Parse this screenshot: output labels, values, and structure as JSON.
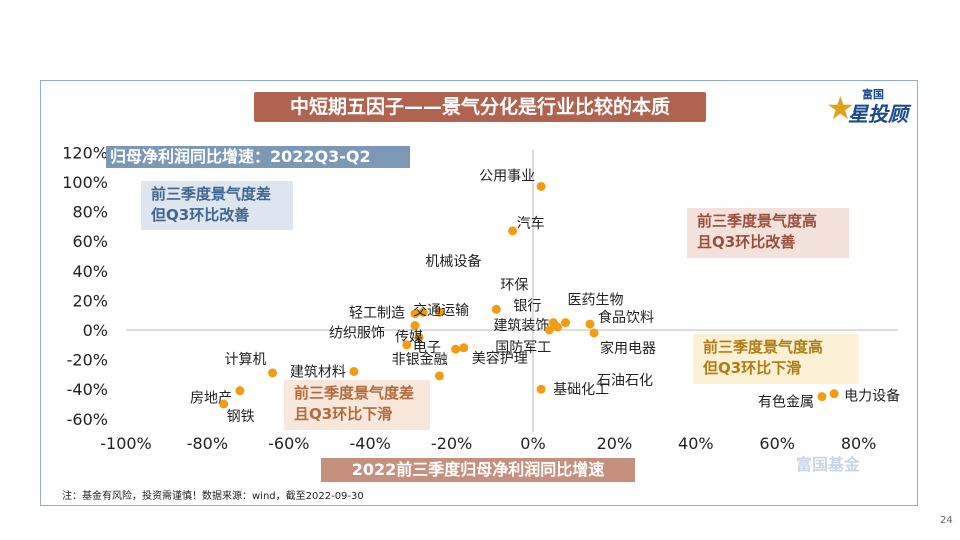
{
  "slide": {
    "title": "中短期五因子——景气分化是行业比较的本质",
    "brand_top": "富国",
    "brand_main": "星投顾",
    "footnote": "注：基金有风险，投资需谨慎！数据来源：wind，截至2022-09-30",
    "page_number": "24",
    "watermark": "富国基金"
  },
  "quadrants": {
    "top_left": [
      "前三季度景气度差",
      "但Q3环比改善"
    ],
    "top_right": [
      "前三季度景气度高",
      "且Q3环比改善"
    ],
    "bottom_right": [
      "前三季度景气度高",
      "但Q3环比下滑"
    ],
    "bottom_left": [
      "前三季度景气度差",
      "且Q3环比下滑"
    ]
  },
  "colors": {
    "point": "#f39c12",
    "axis_line": "#b8b8b8",
    "title_bg": "#b0644f"
  },
  "chart_data": {
    "type": "scatter",
    "title": "中短期五因子——景气分化是行业比较的本质",
    "xlabel": "2022前三季度归母净利润同比增速",
    "ylabel": "归母净利润同比增速：2022Q3-Q2",
    "xlim": [
      -100,
      90
    ],
    "ylim": [
      -60,
      120
    ],
    "x_ticks": [
      "-100%",
      "-80%",
      "-60%",
      "-40%",
      "-20%",
      "0%",
      "20%",
      "40%",
      "60%",
      "80%"
    ],
    "x_tick_values": [
      -100,
      -80,
      -60,
      -40,
      -20,
      0,
      20,
      40,
      60,
      80
    ],
    "y_ticks": [
      "120%",
      "100%",
      "80%",
      "60%",
      "40%",
      "20%",
      "0%",
      "-20%",
      "-40%",
      "-60%"
    ],
    "y_tick_values": [
      120,
      100,
      80,
      60,
      40,
      20,
      0,
      -20,
      -40,
      -60
    ],
    "points": [
      {
        "label": "公用事业",
        "x": 2,
        "y": 97
      },
      {
        "label": "汽车",
        "x": -5,
        "y": 67
      },
      {
        "label": "机械设备",
        "x": -23,
        "y": 12
      },
      {
        "label": "环保",
        "x": -9,
        "y": 14
      },
      {
        "label": "轻工制造",
        "x": -29,
        "y": 11
      },
      {
        "label": "交通运输",
        "x": -27,
        "y": 12
      },
      {
        "label": "医药生物",
        "x": 8,
        "y": 5
      },
      {
        "label": "银行",
        "x": 5,
        "y": 5
      },
      {
        "label": "建筑装饰",
        "x": 6,
        "y": 2
      },
      {
        "label": "食品饮料",
        "x": 14,
        "y": 4
      },
      {
        "label": "纺织服饰",
        "x": -29,
        "y": 3
      },
      {
        "label": "传媒",
        "x": -28,
        "y": -5
      },
      {
        "label": "国防军工",
        "x": 4,
        "y": 0
      },
      {
        "label": "家用电器",
        "x": 15,
        "y": -2
      },
      {
        "label": "电子",
        "x": -31,
        "y": -10
      },
      {
        "label": "非银金融",
        "x": -19,
        "y": -13
      },
      {
        "label": "美容护理",
        "x": -17,
        "y": -12
      },
      {
        "label": "计算机",
        "x": -64,
        "y": -29
      },
      {
        "label": "建筑材料",
        "x": -44,
        "y": -28
      },
      {
        "label": "房地产",
        "x": -72,
        "y": -41
      },
      {
        "label": "钢铁",
        "x": -76,
        "y": -50
      },
      {
        "label": "石油石化",
        "x": -23,
        "y": -31
      },
      {
        "label": "基础化工",
        "x": 2,
        "y": -40
      },
      {
        "label": "有色金属",
        "x": 71,
        "y": -45
      },
      {
        "label": "电力设备",
        "x": 74,
        "y": -43
      }
    ]
  }
}
